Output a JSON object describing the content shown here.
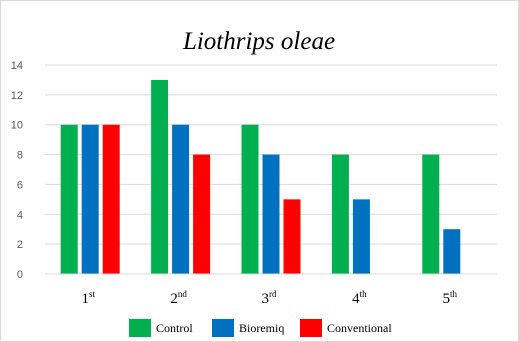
{
  "chart_data": {
    "type": "bar",
    "title": "Liothrips oleae",
    "categories": [
      {
        "base": "1",
        "sup": "st"
      },
      {
        "base": "2",
        "sup": "nd"
      },
      {
        "base": "3",
        "sup": "rd"
      },
      {
        "base": "4",
        "sup": "th"
      },
      {
        "base": "5",
        "sup": "th"
      }
    ],
    "series": [
      {
        "name": "Control",
        "color": "#00b050",
        "values": [
          10,
          13,
          10,
          8,
          8
        ]
      },
      {
        "name": "Bioremiq",
        "color": "#0070c0",
        "values": [
          10,
          10,
          8,
          5,
          3
        ]
      },
      {
        "name": "Conventional",
        "color": "#ff0000",
        "values": [
          10,
          8,
          5,
          0,
          0
        ]
      }
    ],
    "ylim": [
      0,
      14
    ],
    "yticks": [
      0,
      2,
      4,
      6,
      8,
      10,
      12,
      14
    ],
    "grid": true,
    "legend_position": "bottom"
  }
}
